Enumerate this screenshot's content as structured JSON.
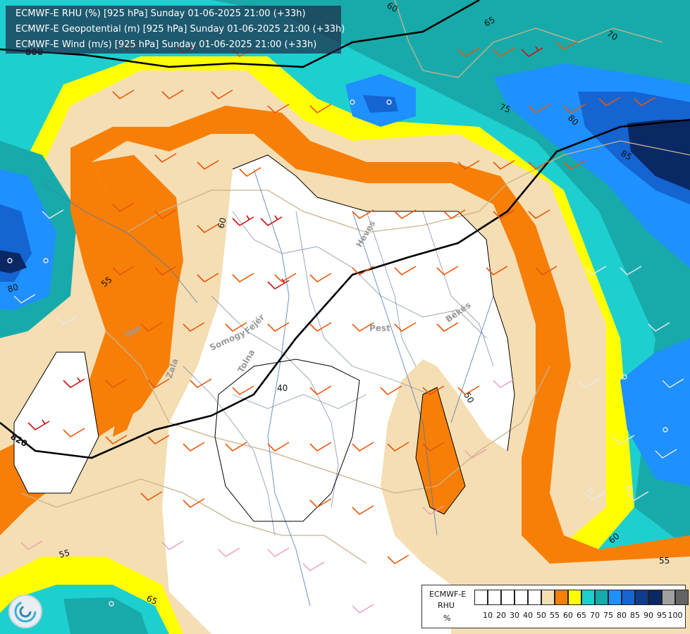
{
  "header": {
    "line1": "ECMWF-E RHU (%) [925 hPa] Sunday 01-06-2025 21:00 (+33h)",
    "line2": "ECMWF-E Geopotential (m) [925 hPa] Sunday 01-06-2025 21:00 (+33h)",
    "line3": "ECMWF-E Wind (m/s) [925 hPa] Sunday 01-06-2025 21:00 (+33h)"
  },
  "legend": {
    "model": "ECMWF-E",
    "variable": "RHU",
    "unit": "%",
    "colors": [
      "#ffffff",
      "#ffffff",
      "#ffffff",
      "#ffffff",
      "#ffffff",
      "#f5deb3",
      "#f77f07",
      "#ffff00",
      "#1ecfcf",
      "#18aaaa",
      "#1e90ff",
      "#1464d2",
      "#0f3c8c",
      "#0a2864",
      "#a0a0a0",
      "#646464"
    ],
    "tick_labels": [
      "10",
      "20",
      "30",
      "40",
      "50",
      "55",
      "60",
      "65",
      "70",
      "75",
      "80",
      "85",
      "90",
      "95",
      "100"
    ]
  },
  "contour_labels": {
    "rhu": [
      "60",
      "65",
      "70",
      "75",
      "80",
      "85",
      "80",
      "55",
      "50",
      "40",
      "60",
      "55",
      "60",
      "65",
      "55",
      "60",
      "50"
    ],
    "geopotential": [
      "800",
      "820"
    ]
  },
  "place_labels": [
    "Heves",
    "Pest",
    "Békés",
    "Vas",
    "Zala",
    "Somogy",
    "Tolna",
    "Fejér"
  ]
}
